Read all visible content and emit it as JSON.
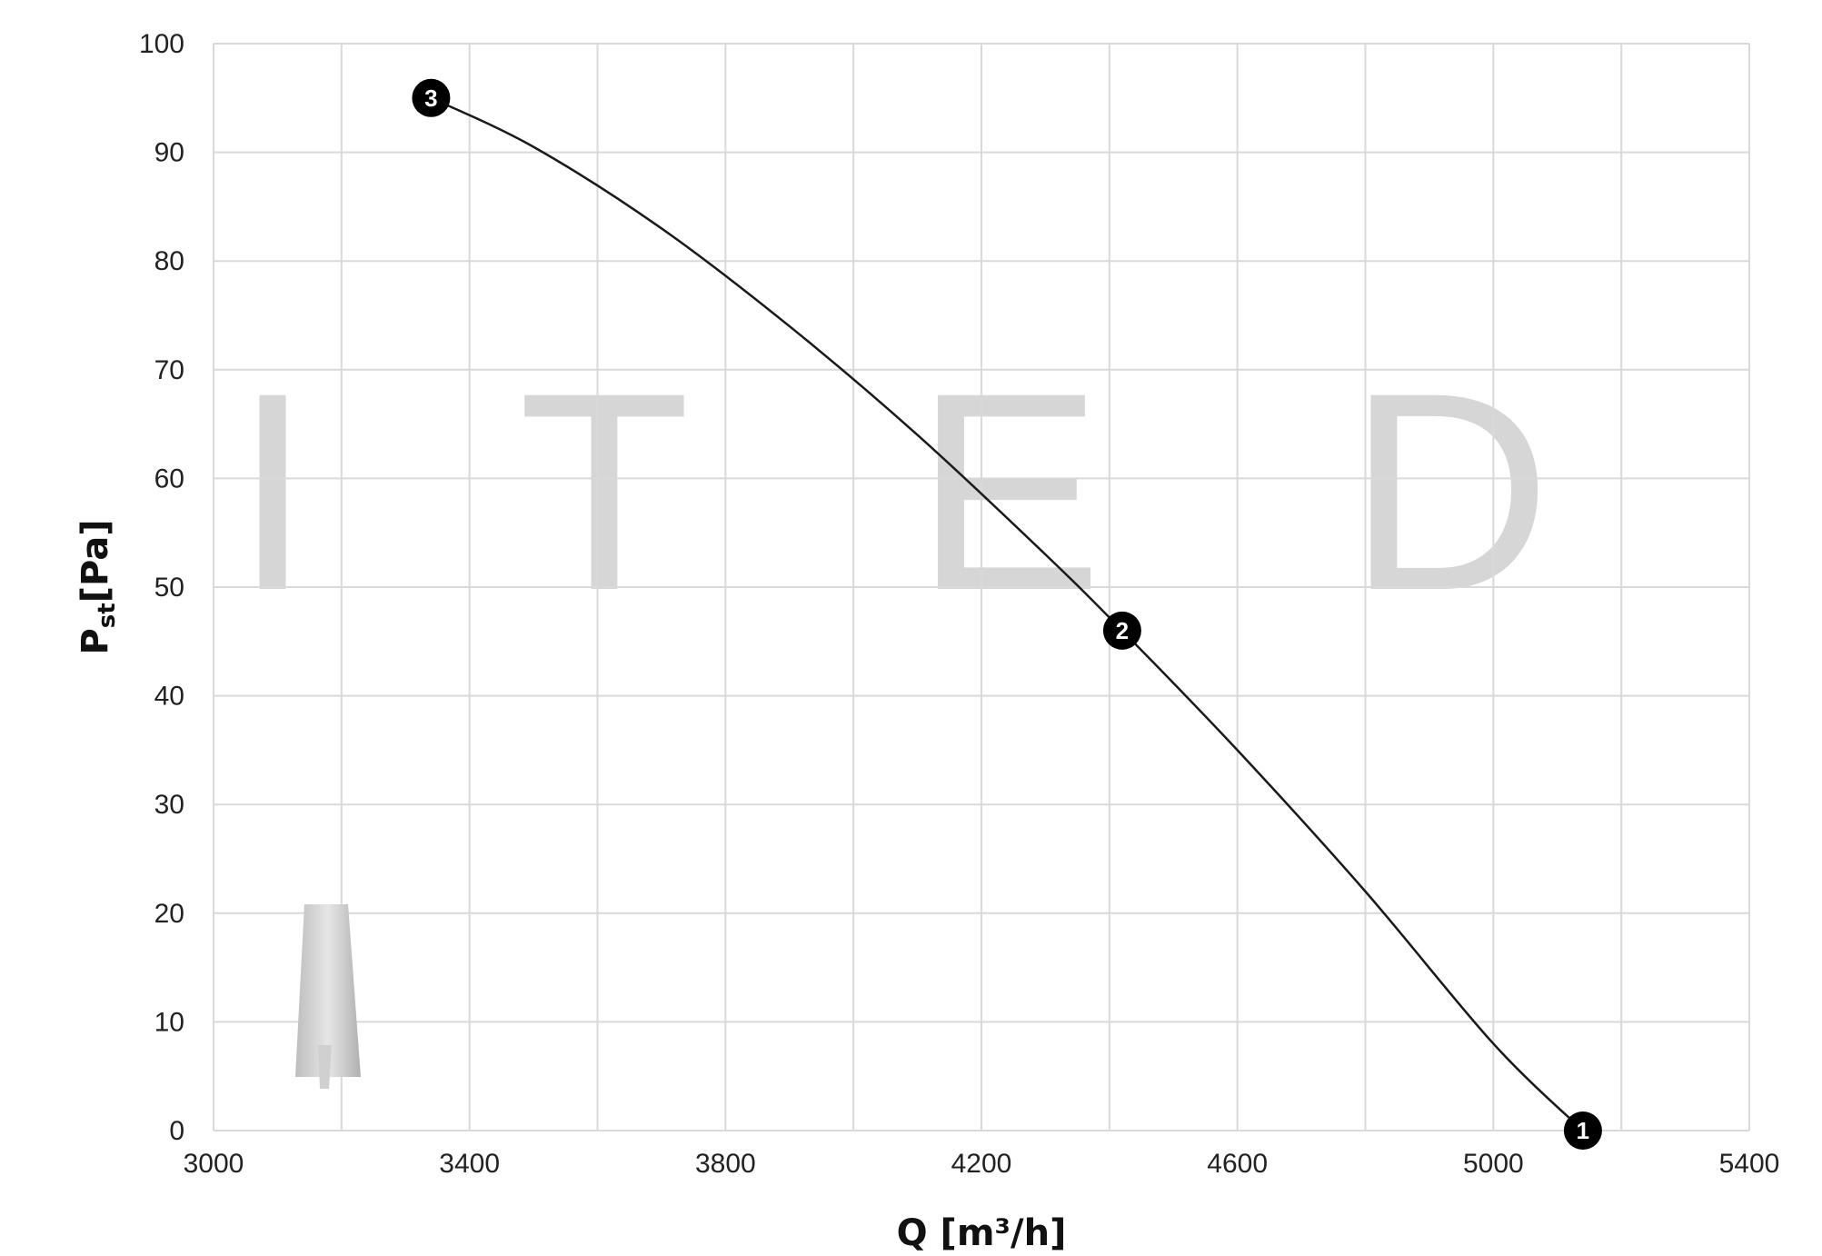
{
  "chart_data": {
    "type": "line",
    "xlabel": "Q  [m³/h]",
    "ylabel_main": "P",
    "ylabel_sub": "st",
    "ylabel_unit": "[Pa]",
    "xlim": [
      3000,
      5400
    ],
    "ylim": [
      0,
      100
    ],
    "x_ticks": [
      3000,
      3400,
      3800,
      4200,
      4600,
      5000,
      5400
    ],
    "y_ticks": [
      0,
      10,
      20,
      30,
      40,
      50,
      60,
      70,
      80,
      90,
      100
    ],
    "grid": true,
    "series": [
      {
        "x": [
          3340,
          3500,
          3700,
          3900,
          4100,
          4300,
          4420,
          4600,
          4800,
          5000,
          5140
        ],
        "y": [
          95,
          90.5,
          83,
          74,
          64,
          53,
          46,
          35,
          22,
          8,
          0
        ]
      }
    ],
    "markers": [
      {
        "label": "1",
        "x": 5140,
        "y": 0
      },
      {
        "label": "2",
        "x": 4420,
        "y": 46
      },
      {
        "label": "3",
        "x": 3340,
        "y": 95
      }
    ],
    "watermark": [
      "I",
      "T",
      "E",
      "D"
    ],
    "colors": {
      "line": "#1a1a1a",
      "grid": "#d9d9d9",
      "marker": "#000000",
      "watermark": "#d6d6d6"
    }
  }
}
